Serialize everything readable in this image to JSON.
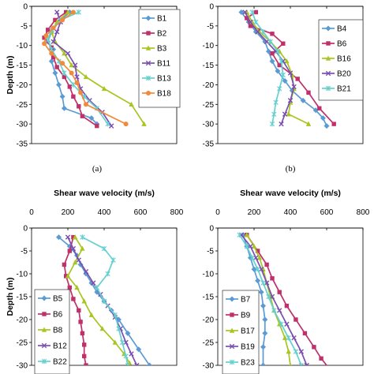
{
  "chart_data": [
    {
      "type": "line",
      "xlabel": "",
      "ylabel": "Depth (m)",
      "xlim": [
        0,
        800
      ],
      "ylim": [
        -35,
        0
      ],
      "xticks": [
        0,
        200,
        400,
        600,
        800
      ],
      "yticks": [
        0,
        -5,
        -10,
        -15,
        -20,
        -25,
        -30,
        -35
      ],
      "show_x_ticklabels": false,
      "caption": "(a)",
      "legend_position": "right",
      "series": [
        {
          "name": "B1",
          "color": "#5B9BD5",
          "marker": "diamond",
          "x": [
            210,
            150,
            110,
            90,
            120,
            110,
            130,
            150,
            170,
            180,
            330,
            360
          ],
          "y": [
            -1.5,
            -4,
            -6.5,
            -9,
            -11,
            -14,
            -17,
            -20,
            -23,
            -26,
            -28.5,
            -30
          ]
        },
        {
          "name": "B2",
          "color": "#C0306A",
          "marker": "square",
          "x": [
            190,
            130,
            90,
            70,
            110,
            120,
            140,
            180,
            210,
            230,
            260,
            280,
            360
          ],
          "y": [
            -1.5,
            -3.5,
            -6,
            -8,
            -10.5,
            -13,
            -15.5,
            -18,
            -20.5,
            -23,
            -25.5,
            -28,
            -30.5
          ]
        },
        {
          "name": "B3",
          "color": "#A8C520",
          "marker": "triangle",
          "x": [
            200,
            140,
            110,
            130,
            180,
            220,
            300,
            400,
            550,
            620
          ],
          "y": [
            -1.5,
            -4,
            -6.5,
            -9,
            -12,
            -15,
            -18,
            -21,
            -25,
            -30
          ]
        },
        {
          "name": "B11",
          "color": "#7A4FB0",
          "marker": "x",
          "x": [
            140,
            160,
            140,
            120,
            200,
            240,
            250,
            270,
            320,
            390,
            440
          ],
          "y": [
            -1.5,
            -4,
            -6.5,
            -9,
            -12,
            -15,
            -18,
            -21,
            -24,
            -27,
            -30.5
          ]
        },
        {
          "name": "B13",
          "color": "#66D0D0",
          "marker": "star",
          "x": [
            260,
            160,
            110,
            90,
            110,
            150,
            180,
            230,
            290,
            360,
            420
          ],
          "y": [
            -1.5,
            -3.5,
            -6,
            -8.5,
            -11,
            -14,
            -17,
            -20,
            -23,
            -26,
            -30
          ]
        },
        {
          "name": "B18",
          "color": "#F08A3C",
          "marker": "circle",
          "x": [
            230,
            170,
            120,
            80,
            70,
            110,
            170,
            220,
            250,
            270,
            300,
            520
          ],
          "y": [
            -1.5,
            -3.5,
            -5.5,
            -7.5,
            -9.5,
            -12,
            -14.5,
            -17,
            -19.5,
            -22,
            -25,
            -30
          ]
        }
      ]
    },
    {
      "type": "line",
      "xlabel": "",
      "ylabel": "",
      "xlim": [
        0,
        800
      ],
      "ylim": [
        -35,
        0
      ],
      "xticks": [
        0,
        200,
        400,
        600,
        800
      ],
      "yticks": [
        0,
        -5,
        -10,
        -15,
        -20,
        -25,
        -30,
        -35
      ],
      "show_x_ticklabels": false,
      "caption": "(b)",
      "legend_position": "right",
      "series": [
        {
          "name": "B4",
          "color": "#5B9BD5",
          "marker": "diamond",
          "x": [
            130,
            170,
            210,
            260,
            280,
            300,
            330,
            370,
            410,
            470,
            540,
            580,
            600
          ],
          "y": [
            -1.5,
            -4,
            -6.5,
            -9,
            -11.5,
            -14,
            -16.5,
            -19,
            -21.5,
            -24,
            -26.5,
            -28.5,
            -30.5
          ]
        },
        {
          "name": "B6",
          "color": "#C0306A",
          "marker": "square",
          "x": [
            210,
            160,
            180,
            300,
            360,
            300,
            340,
            440,
            500,
            560,
            640
          ],
          "y": [
            -1.5,
            -3,
            -5,
            -7,
            -9.5,
            -12,
            -15,
            -18.5,
            -22,
            -26,
            -30
          ]
        },
        {
          "name": "B16",
          "color": "#A8C520",
          "marker": "triangle",
          "x": [
            160,
            190,
            230,
            290,
            340,
            380,
            410,
            420,
            400,
            390,
            500
          ],
          "y": [
            -1.5,
            -4,
            -6.5,
            -9,
            -11.5,
            -14,
            -17.5,
            -21,
            -24.5,
            -27.5,
            -30
          ]
        },
        {
          "name": "B20",
          "color": "#7A4FB0",
          "marker": "x",
          "x": [
            150,
            180,
            220,
            270,
            320,
            360,
            400,
            420,
            400,
            370,
            350
          ],
          "y": [
            -1.5,
            -4,
            -6.5,
            -9,
            -11.5,
            -14,
            -17,
            -20.5,
            -24,
            -27.5,
            -30
          ]
        },
        {
          "name": "B21",
          "color": "#66D0D0",
          "marker": "star",
          "x": [
            190,
            210,
            250,
            290,
            330,
            350,
            360,
            340,
            320,
            310,
            300
          ],
          "y": [
            -1.5,
            -4,
            -6.5,
            -9,
            -11.5,
            -14,
            -17.5,
            -21,
            -24.5,
            -27.5,
            -30
          ]
        }
      ]
    },
    {
      "type": "line",
      "title": "Shear wave velocity (m/s)",
      "xlabel": "",
      "ylabel": "Depth (m)",
      "xlim": [
        0,
        800
      ],
      "ylim": [
        -30,
        0
      ],
      "xticks": [
        0,
        200,
        400,
        600,
        800
      ],
      "yticks": [
        0,
        -5,
        -10,
        -15,
        -20,
        -25,
        -30
      ],
      "show_x_ticklabels": true,
      "legend_position": "left",
      "series": [
        {
          "name": "B5",
          "color": "#5B9BD5",
          "marker": "diamond",
          "x": [
            150,
            210,
            250,
            270,
            300,
            330,
            360,
            400,
            440,
            480,
            530,
            590,
            650
          ],
          "y": [
            -2,
            -4,
            -6,
            -8,
            -10,
            -12,
            -14,
            -16,
            -18,
            -20,
            -23,
            -26.5,
            -30
          ]
        },
        {
          "name": "B6",
          "color": "#C0306A",
          "marker": "square",
          "x": [
            230,
            210,
            180,
            190,
            210,
            230,
            260,
            270,
            280,
            290,
            290,
            300,
            330
          ],
          "y": [
            -2,
            -5,
            -8,
            -10.5,
            -13,
            -15.5,
            -18,
            -20.5,
            -23,
            -25.5,
            -28,
            -30,
            -30.5
          ]
        },
        {
          "name": "B8",
          "color": "#A8C520",
          "marker": "triangle",
          "x": [
            240,
            280,
            240,
            200,
            250,
            290,
            330,
            390,
            460,
            510,
            540,
            530
          ],
          "y": [
            -2,
            -4.5,
            -7.5,
            -10.5,
            -13,
            -16,
            -19,
            -22,
            -25,
            -27.5,
            -29.5,
            -30.5
          ]
        },
        {
          "name": "B12",
          "color": "#7A4FB0",
          "marker": "x",
          "x": [
            200,
            230,
            260,
            300,
            340,
            380,
            420,
            460,
            490,
            520,
            550,
            580
          ],
          "y": [
            -2,
            -4.5,
            -7,
            -9.5,
            -12,
            -14.5,
            -17,
            -19.5,
            -22,
            -25,
            -27.5,
            -30
          ]
        },
        {
          "name": "B22",
          "color": "#66D0D0",
          "marker": "star",
          "x": [
            280,
            400,
            450,
            420,
            360,
            400,
            460,
            480,
            500,
            520,
            530
          ],
          "y": [
            -2,
            -4.5,
            -7,
            -10,
            -13,
            -16,
            -19,
            -22,
            -25,
            -28,
            -30
          ]
        }
      ]
    },
    {
      "type": "line",
      "title": "Shear wave velocity (m/s)",
      "xlabel": "",
      "ylabel": "",
      "xlim": [
        0,
        800
      ],
      "ylim": [
        -30,
        0
      ],
      "xticks": [
        0,
        200,
        400,
        600,
        800
      ],
      "yticks": [
        0,
        -5,
        -10,
        -15,
        -20,
        -25,
        -30
      ],
      "show_x_ticklabels": true,
      "legend_position": "left",
      "series": [
        {
          "name": "B7",
          "color": "#5B9BD5",
          "marker": "diamond",
          "x": [
            140,
            160,
            180,
            200,
            220,
            240,
            250,
            260,
            260,
            250,
            250
          ],
          "y": [
            -1.5,
            -4,
            -6.5,
            -9,
            -11.5,
            -14,
            -17,
            -20,
            -23,
            -26,
            -30
          ]
        },
        {
          "name": "B9",
          "color": "#C0306A",
          "marker": "square",
          "x": [
            160,
            220,
            270,
            300,
            340,
            380,
            430,
            480,
            530,
            570,
            610
          ],
          "y": [
            -1.5,
            -5,
            -8,
            -11,
            -14,
            -17,
            -20,
            -23,
            -26,
            -28.5,
            -30.5
          ]
        },
        {
          "name": "B17",
          "color": "#A8C520",
          "marker": "triangle",
          "x": [
            160,
            200,
            230,
            250,
            270,
            290,
            310,
            340,
            370,
            390,
            400
          ],
          "y": [
            -1.5,
            -4,
            -6.5,
            -9,
            -12,
            -15,
            -18,
            -21,
            -24,
            -27,
            -30
          ]
        },
        {
          "name": "B19",
          "color": "#7A4FB0",
          "marker": "x",
          "x": [
            130,
            180,
            210,
            240,
            270,
            300,
            340,
            380,
            420,
            460,
            490
          ],
          "y": [
            -1.5,
            -4,
            -6.5,
            -9,
            -12,
            -15,
            -18,
            -21,
            -24,
            -27,
            -30
          ]
        },
        {
          "name": "B23",
          "color": "#66D0D0",
          "marker": "star",
          "x": [
            120,
            160,
            190,
            220,
            250,
            280,
            310,
            350,
            390,
            430,
            460
          ],
          "y": [
            -1.5,
            -4,
            -6.5,
            -9,
            -12,
            -15,
            -18,
            -21,
            -24,
            -27,
            -30
          ]
        }
      ]
    }
  ]
}
